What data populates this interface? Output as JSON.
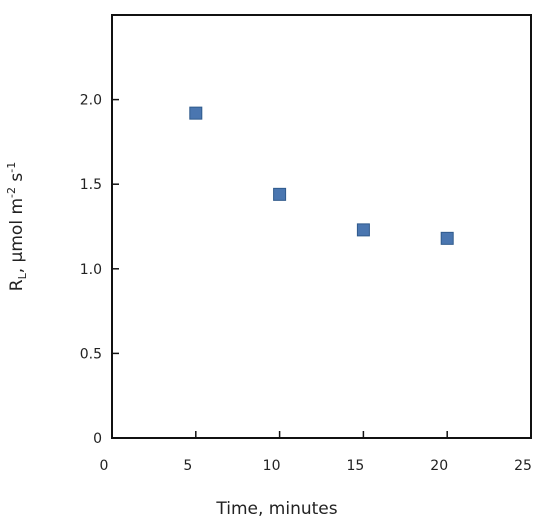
{
  "chart_data": {
    "type": "scatter",
    "title": "",
    "xlabel": "Time, minutes",
    "ylabel": {
      "symbol": "R",
      "subscript": "L",
      "unit_prefix": ", µmol m",
      "unit_exp1": "-2",
      "unit_mid": " s",
      "unit_exp2": "-1"
    },
    "xlim": [
      0,
      25
    ],
    "ylim": [
      0,
      2.5
    ],
    "xticks": [
      0,
      5,
      10,
      15,
      20,
      25
    ],
    "xtick_labels": [
      "0",
      "5",
      "10",
      "15",
      "20",
      "25"
    ],
    "yticks": [
      0,
      0.5,
      1.0,
      1.5,
      2.0
    ],
    "ytick_labels": [
      "0",
      "0.5",
      "1.0",
      "1.5",
      "2.0"
    ],
    "grid": false,
    "legend": "none",
    "marker": "square",
    "series": [
      {
        "x": [
          5,
          10,
          15,
          20
        ],
        "y": [
          1.92,
          1.44,
          1.23,
          1.18
        ]
      }
    ],
    "colors": {
      "marker_fill": "#4a76b0",
      "marker_stroke": "#2f5a8c",
      "axis": "#111111"
    }
  }
}
